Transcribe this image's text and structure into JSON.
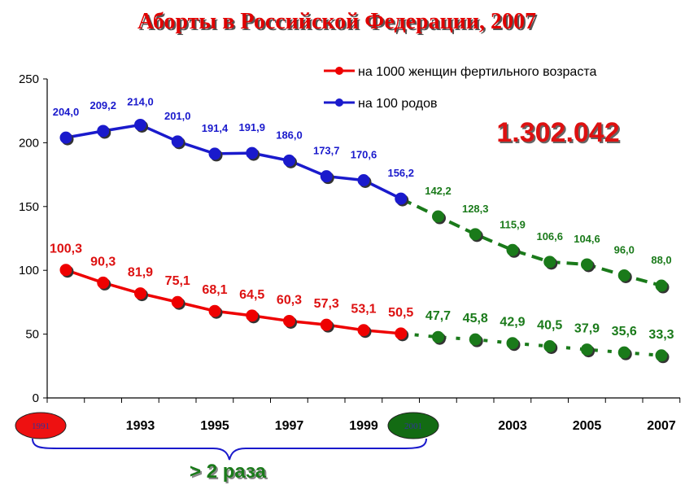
{
  "title": "Аборты в Российской Федерации, 2007",
  "total_annotation": "1.302.042",
  "ratio_annotation": "> 2 раза",
  "colors": {
    "per_births": "#1a1acc",
    "per_women": "#ee0000",
    "projection": "#1a7a1a",
    "title": "#e00000"
  },
  "chart_data": {
    "type": "line",
    "title": "Аборты в Российской Федерации, 2007",
    "x": [
      1991,
      1992,
      1993,
      1994,
      1995,
      1996,
      1997,
      1998,
      1999,
      2000,
      2001,
      2002,
      2003,
      2004,
      2005,
      2006,
      2007
    ],
    "x_tick_labels": [
      "1991",
      "1993",
      "1995",
      "1997",
      "1999",
      "2001",
      "2003",
      "2005",
      "2007"
    ],
    "y_ticks": [
      "0",
      "50",
      "100",
      "150",
      "200",
      "250"
    ],
    "ylim": [
      0,
      250
    ],
    "grid": false,
    "legend_position": "top-right",
    "highlighted_years": [
      "1991",
      "2001"
    ],
    "series": [
      {
        "name": "на 1000 женщин фертильного возраста",
        "color": "#ee0000",
        "values": [
          100.3,
          90.3,
          81.9,
          75.1,
          68.1,
          64.5,
          60.3,
          57.3,
          53.1,
          50.5,
          47.7,
          45.8,
          42.9,
          40.5,
          37.9,
          35.6,
          33.3
        ],
        "labels": [
          "100,3",
          "90,3",
          "81,9",
          "75,1",
          "68,1",
          "64,5",
          "60,3",
          "57,3",
          "53,1",
          "50,5",
          "47,7",
          "45,8",
          "42,9",
          "40,5",
          "37,9",
          "35,6",
          "33,3"
        ]
      },
      {
        "name": "на 100 родов",
        "color": "#1a1acc",
        "values": [
          204.0,
          209.2,
          214.0,
          201.0,
          191.4,
          191.9,
          186.0,
          173.7,
          170.6,
          156.2,
          142.2,
          128.3,
          115.9,
          106.6,
          104.6,
          96.0,
          88.0
        ],
        "labels": [
          "204,0",
          "209,2",
          "214,0",
          "201,0",
          "191,4",
          "191,9",
          "186,0",
          "173,7",
          "170,6",
          "156,2",
          "142,2",
          "128,3",
          "115,9",
          "106,6",
          "104,6",
          "96,0",
          "88,0"
        ]
      }
    ]
  }
}
